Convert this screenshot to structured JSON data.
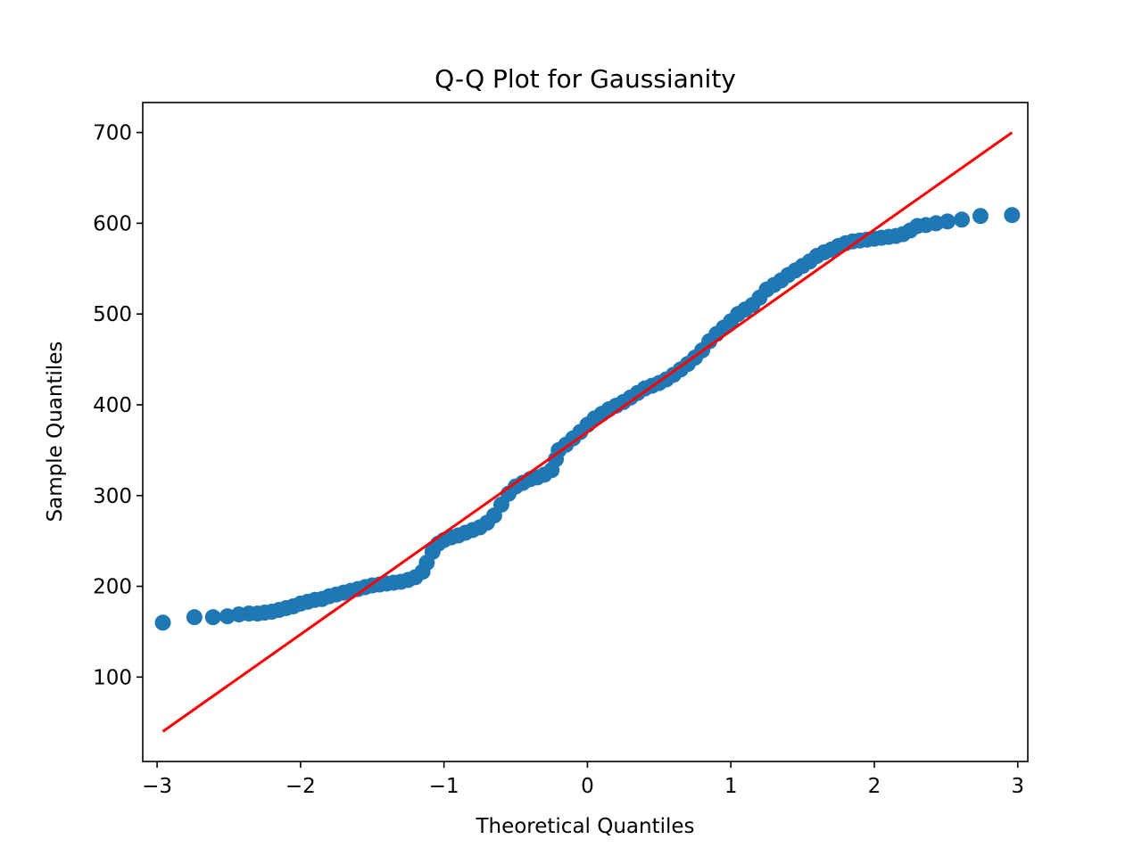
{
  "chart_data": {
    "type": "scatter",
    "title": "Q-Q Plot for Gaussianity",
    "xlabel": "Theoretical Quantiles",
    "ylabel": "Sample Quantiles",
    "xlim": [
      -3.1,
      3.07
    ],
    "ylim": [
      7,
      733
    ],
    "xticks": [
      -3,
      -2,
      -1,
      0,
      1,
      2,
      3
    ],
    "xtick_labels": [
      "−3",
      "−2",
      "−1",
      "0",
      "1",
      "2",
      "3"
    ],
    "yticks": [
      100,
      200,
      300,
      400,
      500,
      600,
      700
    ],
    "ytick_labels": [
      "100",
      "200",
      "300",
      "400",
      "500",
      "600",
      "700"
    ],
    "grid": false,
    "legend": "none",
    "marker_color": "#1f77b4",
    "line_color": "#ff0000",
    "series": [
      {
        "kind": "points",
        "points": [
          [
            -2.96,
            160
          ],
          [
            -2.74,
            166
          ],
          [
            -2.61,
            166
          ],
          [
            -2.51,
            167
          ],
          [
            -2.43,
            169
          ],
          [
            -2.36,
            170
          ],
          [
            -2.3,
            170
          ],
          [
            -2.25,
            171
          ],
          [
            -2.2,
            172
          ],
          [
            -2.15,
            174
          ],
          [
            -2.1,
            176
          ],
          [
            -2.05,
            178
          ],
          [
            -2.0,
            181
          ],
          [
            -1.95,
            183
          ],
          [
            -1.9,
            185
          ],
          [
            -1.85,
            186
          ],
          [
            -1.8,
            189
          ],
          [
            -1.75,
            191
          ],
          [
            -1.7,
            193
          ],
          [
            -1.65,
            195
          ],
          [
            -1.6,
            197
          ],
          [
            -1.55,
            199
          ],
          [
            -1.5,
            201
          ],
          [
            -1.45,
            202
          ],
          [
            -1.4,
            203
          ],
          [
            -1.35,
            204
          ],
          [
            -1.3,
            205
          ],
          [
            -1.25,
            207
          ],
          [
            -1.2,
            210
          ],
          [
            -1.15,
            216
          ],
          [
            -1.12,
            226
          ],
          [
            -1.08,
            238
          ],
          [
            -1.04,
            247
          ],
          [
            -1.0,
            251
          ],
          [
            -0.95,
            254
          ],
          [
            -0.9,
            256
          ],
          [
            -0.85,
            259
          ],
          [
            -0.8,
            262
          ],
          [
            -0.75,
            265
          ],
          [
            -0.7,
            270
          ],
          [
            -0.65,
            278
          ],
          [
            -0.6,
            290
          ],
          [
            -0.55,
            302
          ],
          [
            -0.5,
            310
          ],
          [
            -0.45,
            314
          ],
          [
            -0.4,
            318
          ],
          [
            -0.35,
            320
          ],
          [
            -0.3,
            323
          ],
          [
            -0.25,
            328
          ],
          [
            -0.22,
            340
          ],
          [
            -0.2,
            350
          ],
          [
            -0.15,
            356
          ],
          [
            -0.1,
            363
          ],
          [
            -0.05,
            370
          ],
          [
            0.0,
            378
          ],
          [
            0.05,
            385
          ],
          [
            0.1,
            390
          ],
          [
            0.15,
            395
          ],
          [
            0.2,
            399
          ],
          [
            0.25,
            403
          ],
          [
            0.3,
            408
          ],
          [
            0.35,
            413
          ],
          [
            0.4,
            418
          ],
          [
            0.45,
            421
          ],
          [
            0.5,
            424
          ],
          [
            0.55,
            428
          ],
          [
            0.6,
            433
          ],
          [
            0.65,
            439
          ],
          [
            0.7,
            445
          ],
          [
            0.75,
            452
          ],
          [
            0.8,
            460
          ],
          [
            0.85,
            470
          ],
          [
            0.9,
            478
          ],
          [
            0.95,
            485
          ],
          [
            1.0,
            492
          ],
          [
            1.05,
            500
          ],
          [
            1.1,
            505
          ],
          [
            1.15,
            510
          ],
          [
            1.2,
            518
          ],
          [
            1.25,
            527
          ],
          [
            1.3,
            532
          ],
          [
            1.35,
            537
          ],
          [
            1.4,
            543
          ],
          [
            1.45,
            548
          ],
          [
            1.5,
            553
          ],
          [
            1.55,
            558
          ],
          [
            1.6,
            564
          ],
          [
            1.65,
            568
          ],
          [
            1.7,
            571
          ],
          [
            1.75,
            575
          ],
          [
            1.8,
            578
          ],
          [
            1.85,
            580
          ],
          [
            1.9,
            581
          ],
          [
            1.95,
            582
          ],
          [
            2.0,
            583
          ],
          [
            2.05,
            584
          ],
          [
            2.1,
            585
          ],
          [
            2.15,
            586
          ],
          [
            2.2,
            588
          ],
          [
            2.25,
            592
          ],
          [
            2.3,
            597
          ],
          [
            2.36,
            598
          ],
          [
            2.43,
            600
          ],
          [
            2.51,
            602
          ],
          [
            2.61,
            604
          ],
          [
            2.74,
            608
          ],
          [
            2.96,
            609
          ]
        ]
      },
      {
        "kind": "line",
        "points": [
          [
            -2.96,
            40
          ],
          [
            2.96,
            700
          ]
        ]
      }
    ]
  }
}
